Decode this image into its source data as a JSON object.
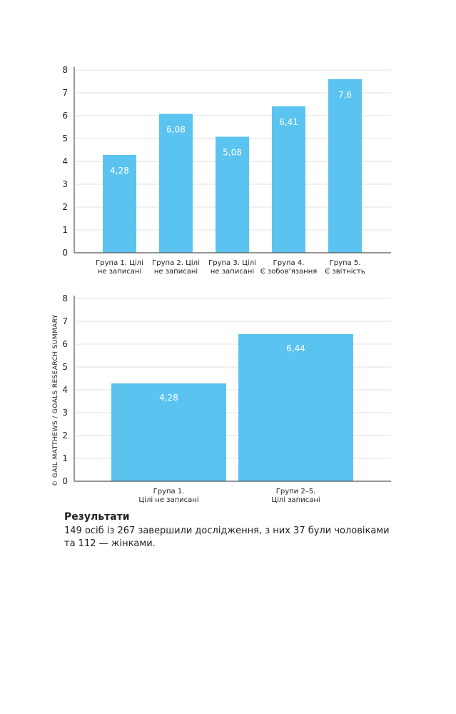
{
  "chart_data": [
    {
      "type": "bar",
      "categories": [
        [
          "Група 1. Цілі",
          "не записані"
        ],
        [
          "Група 2. Цілі",
          "не записані"
        ],
        [
          "Група 3. Цілі",
          "не записані"
        ],
        [
          "Група 4.",
          "Є зобов’язання"
        ],
        [
          "Група 5.",
          "Є звітність"
        ]
      ],
      "values": [
        4.28,
        6.08,
        5.08,
        6.41,
        7.6
      ],
      "data_labels": [
        "4,28",
        "6,08",
        "5,08",
        "6,41",
        "7,6"
      ],
      "yticks": [
        "0",
        "1",
        "2",
        "3",
        "4",
        "5",
        "6",
        "7",
        "8"
      ],
      "ylim": [
        0,
        8
      ],
      "grid": true,
      "color": "#5bc3f0"
    },
    {
      "type": "bar",
      "categories": [
        [
          "Група 1.",
          "Цілі не записані"
        ],
        [
          "Групи 2–5.",
          "Цілі записані"
        ]
      ],
      "values": [
        4.28,
        6.44
      ],
      "data_labels": [
        "4,28",
        "6,44"
      ],
      "yticks": [
        "0",
        "1",
        "2",
        "3",
        "4",
        "5",
        "6",
        "7",
        "8"
      ],
      "ylim": [
        0,
        8
      ],
      "grid": true,
      "color": "#5bc3f0"
    }
  ],
  "copyright": "© GAIL MATTHEWS / GOALS RESEARCH SUMMARY",
  "results": {
    "title": "Результати",
    "text": "149 осіб із 267 завершили дослідження, з них 37 були чоловіками та 112 — жінками."
  }
}
